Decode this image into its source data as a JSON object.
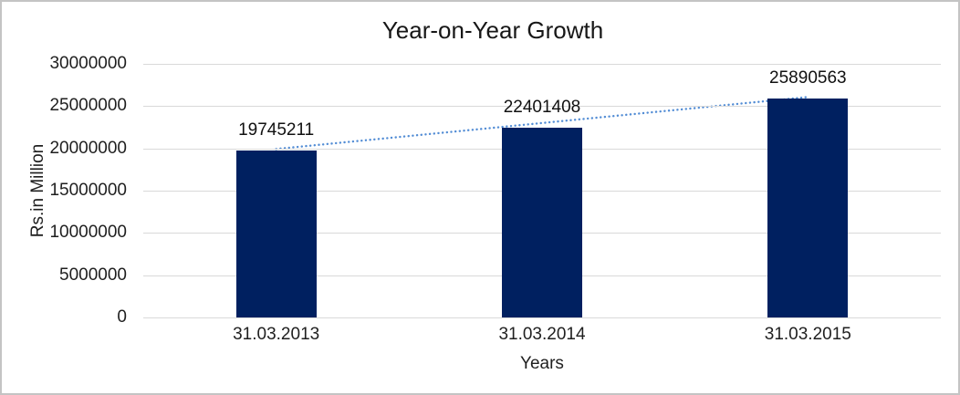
{
  "chart_data": {
    "type": "bar",
    "title": "Year-on-Year Growth",
    "xlabel": "Years",
    "ylabel": "Rs.in Million",
    "categories": [
      "31.03.2013",
      "31.03.2014",
      "31.03.2015"
    ],
    "values": [
      19745211,
      22401408,
      25890563
    ],
    "data_labels": [
      "19745211",
      "22401408",
      "25890563"
    ],
    "ylim": [
      0,
      30000000
    ],
    "ytick_step": 5000000,
    "yticks": [
      "0",
      "5000000",
      "10000000",
      "15000000",
      "20000000",
      "25000000",
      "30000000"
    ],
    "grid": true,
    "legend": "none",
    "bar_color": "#002060",
    "gridline_color": "#d9d9d9",
    "trendline": {
      "type": "linear",
      "style": "dotted",
      "color": "#538DD5"
    }
  }
}
